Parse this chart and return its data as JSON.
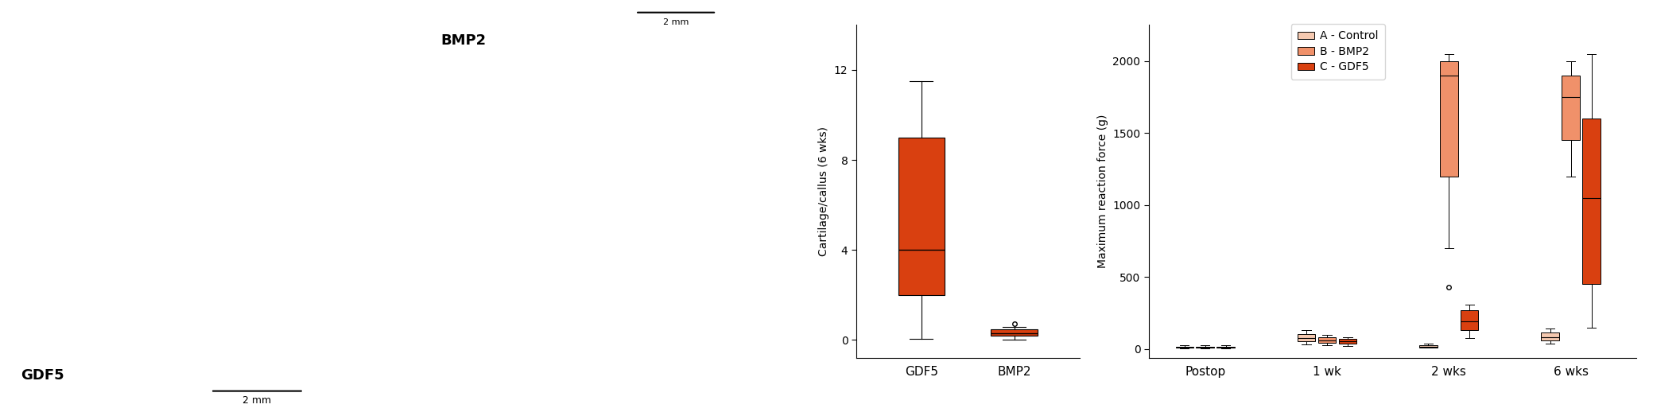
{
  "chart_c": {
    "ylabel": "Cartilage/callus (6 wks)",
    "xlabel_ticks": [
      "GDF5",
      "BMP2"
    ],
    "ylim": [
      -0.8,
      14.0
    ],
    "yticks": [
      0,
      4,
      8,
      12
    ],
    "color_gdf5": "#D94010",
    "gdf5": {
      "med": 4.0,
      "q1": 2.0,
      "q3": 9.0,
      "whislo": 0.05,
      "whishi": 11.5,
      "fliers": []
    },
    "bmp2": {
      "med": 0.28,
      "q1": 0.18,
      "q3": 0.45,
      "whislo": 0.02,
      "whishi": 0.58,
      "fliers": [
        0.72
      ]
    }
  },
  "chart_d": {
    "ylabel": "Maximum reaction force (g)",
    "xlabel_ticks": [
      "Postop",
      "1 wk",
      "2 wks",
      "6 wks"
    ],
    "ylim": [
      -60,
      2250
    ],
    "yticks": [
      0,
      500,
      1000,
      1500,
      2000
    ],
    "color_control": "#F5C9B0",
    "color_bmp2": "#F0916A",
    "color_gdf5": "#D94010",
    "legend_labels": [
      "A - Control",
      "B - BMP2",
      "C - GDF5"
    ],
    "groups": {
      "Postop": {
        "control": {
          "med": 12,
          "q1": 8,
          "q3": 18,
          "whislo": 5,
          "whishi": 25,
          "fliers": []
        },
        "bmp2": {
          "med": 12,
          "q1": 8,
          "q3": 18,
          "whislo": 5,
          "whishi": 25,
          "fliers": []
        },
        "gdf5": {
          "med": 12,
          "q1": 8,
          "q3": 18,
          "whislo": 5,
          "whishi": 25,
          "fliers": []
        }
      },
      "1wk": {
        "control": {
          "med": 75,
          "q1": 55,
          "q3": 105,
          "whislo": 30,
          "whishi": 130,
          "fliers": []
        },
        "bmp2": {
          "med": 60,
          "q1": 45,
          "q3": 80,
          "whislo": 25,
          "whishi": 100,
          "fliers": []
        },
        "gdf5": {
          "med": 55,
          "q1": 40,
          "q3": 70,
          "whislo": 20,
          "whishi": 85,
          "fliers": []
        }
      },
      "2wks": {
        "control": {
          "med": 18,
          "q1": 12,
          "q3": 28,
          "whislo": 8,
          "whishi": 38,
          "fliers": []
        },
        "bmp2": {
          "med": 1900,
          "q1": 1200,
          "q3": 2000,
          "whislo": 700,
          "whishi": 2050,
          "fliers": [
            430
          ]
        },
        "gdf5": {
          "med": 195,
          "q1": 130,
          "q3": 270,
          "whislo": 75,
          "whishi": 310,
          "fliers": []
        }
      },
      "6wks": {
        "control": {
          "med": 85,
          "q1": 62,
          "q3": 115,
          "whislo": 40,
          "whishi": 145,
          "fliers": []
        },
        "bmp2": {
          "med": 1750,
          "q1": 1450,
          "q3": 1900,
          "whislo": 1200,
          "whishi": 2000,
          "fliers": []
        },
        "gdf5": {
          "med": 1050,
          "q1": 450,
          "q3": 1600,
          "whislo": 150,
          "whishi": 2050,
          "fliers": []
        }
      }
    }
  },
  "fig_width": 20.79,
  "fig_height": 5.23,
  "fig_dpi": 100,
  "image_bg_left": "#e8d5b8",
  "image_bg_right": "#c8b8a0"
}
